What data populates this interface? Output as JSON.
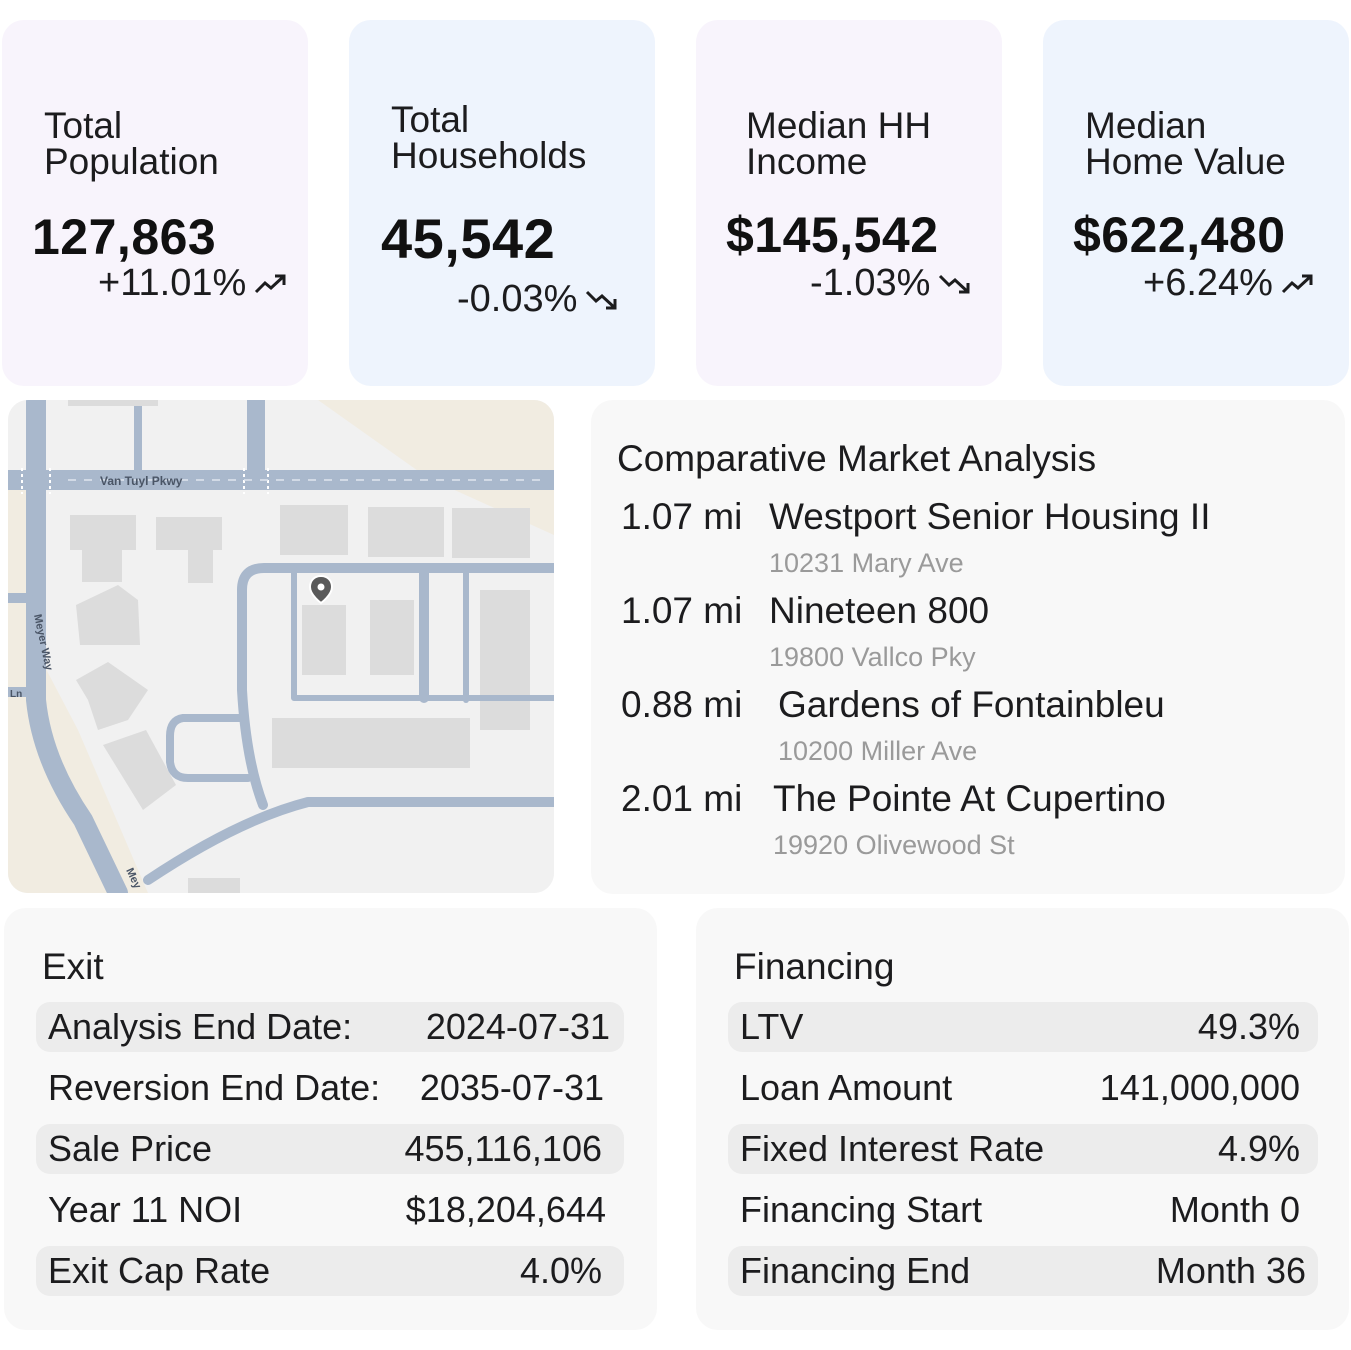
{
  "stats": [
    {
      "label": "Total\nPopulation",
      "value": "127,863",
      "delta": "+11.01%",
      "trend": "trend-up-icon"
    },
    {
      "label": "Total\nHouseholds",
      "value": "45,542",
      "delta": "-0.03%",
      "trend": "trend-down-icon"
    },
    {
      "label": "Median HH\nIncome",
      "value": "$145,542",
      "delta": "-1.03%",
      "trend": "trend-down-icon"
    },
    {
      "label": "Median\nHome Value",
      "value": "$622,480",
      "delta": "+6.24%",
      "trend": "trend-up-icon"
    }
  ],
  "map": {
    "street_labels": [
      "Van Tuyl Pkwy",
      "Meyer Way",
      "Ln",
      "Mey"
    ],
    "pin_icon": "map-pin-icon"
  },
  "cma": {
    "title": "Comparative Market Analysis",
    "items": [
      {
        "distance": "1.07 mi",
        "name": "Westport Senior Housing II",
        "address": "10231 Mary Ave"
      },
      {
        "distance": "1.07 mi",
        "name": "Nineteen 800",
        "address": "19800 Vallco Pky"
      },
      {
        "distance": "0.88 mi",
        "name": "Gardens of Fontainbleu",
        "address": "10200 Miller Ave"
      },
      {
        "distance": "2.01 mi",
        "name": "The Pointe At Cupertino",
        "address": "19920 Olivewood St"
      }
    ]
  },
  "exit": {
    "title": "Exit",
    "rows": [
      {
        "label": "Analysis End Date:",
        "value": "2024-07-31"
      },
      {
        "label": "Reversion End Date:",
        "value": "2035-07-31"
      },
      {
        "label": "Sale Price",
        "value": "455,116,106"
      },
      {
        "label": "Year 11 NOI",
        "value": "$18,204,644"
      },
      {
        "label": "Exit Cap Rate",
        "value": "4.0%"
      }
    ]
  },
  "financing": {
    "title": "Financing",
    "rows": [
      {
        "label": "LTV",
        "value": "49.3%"
      },
      {
        "label": "Loan Amount",
        "value": "141,000,000"
      },
      {
        "label": "Fixed Interest Rate",
        "value": "4.9%"
      },
      {
        "label": "Financing Start",
        "value": "Month 0"
      },
      {
        "label": "Financing End",
        "value": "Month 36"
      }
    ]
  },
  "colors": {
    "card_purple": "#f8f4fc",
    "card_blue": "#eef4fd",
    "card_gray": "#f8f8f8",
    "row_shade": "#ececec",
    "road": "#a9b8cc",
    "building": "#dcdcdc",
    "land": "#f1ece1"
  }
}
